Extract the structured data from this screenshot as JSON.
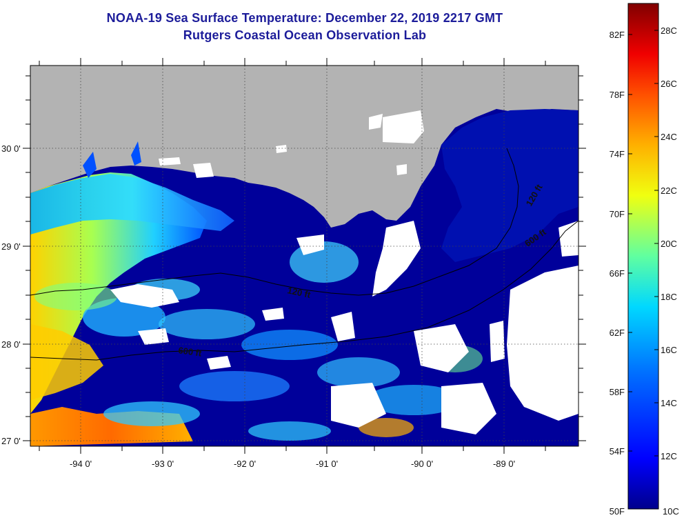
{
  "title": {
    "line1": "NOAA-19 Sea Surface Temperature:  December 22, 2019 2217 GMT",
    "line2": "Rutgers Coastal Ocean Observation Lab"
  },
  "axes": {
    "lat_labels": [
      "30 0'",
      "29 0'",
      "28 0'",
      "27 0'"
    ],
    "lon_labels": [
      "-94 0'",
      "-93 0'",
      "-92 0'",
      "-91 0'",
      "-90 0'",
      "-89 0'"
    ]
  },
  "contours": {
    "shelf_120": "120 ft",
    "shelf_600": "600 ft",
    "shelf_120_east": "120 ft",
    "shelf_600_east": "600 ft"
  },
  "colorbar": {
    "f_labels": [
      "82F",
      "78F",
      "74F",
      "70F",
      "66F",
      "62F",
      "58F",
      "54F",
      "50F"
    ],
    "c_labels": [
      "28C",
      "26C",
      "24C",
      "22C",
      "20C",
      "18C",
      "16C",
      "14C",
      "12C",
      "10C"
    ],
    "range_c": [
      10,
      29
    ]
  },
  "colors": {
    "title": "#1c1c9a",
    "land": "#b3b3b3",
    "no_data": "#ffffff",
    "ocean_cold": "#00009a",
    "ocean_warm": "#ff6a00"
  }
}
